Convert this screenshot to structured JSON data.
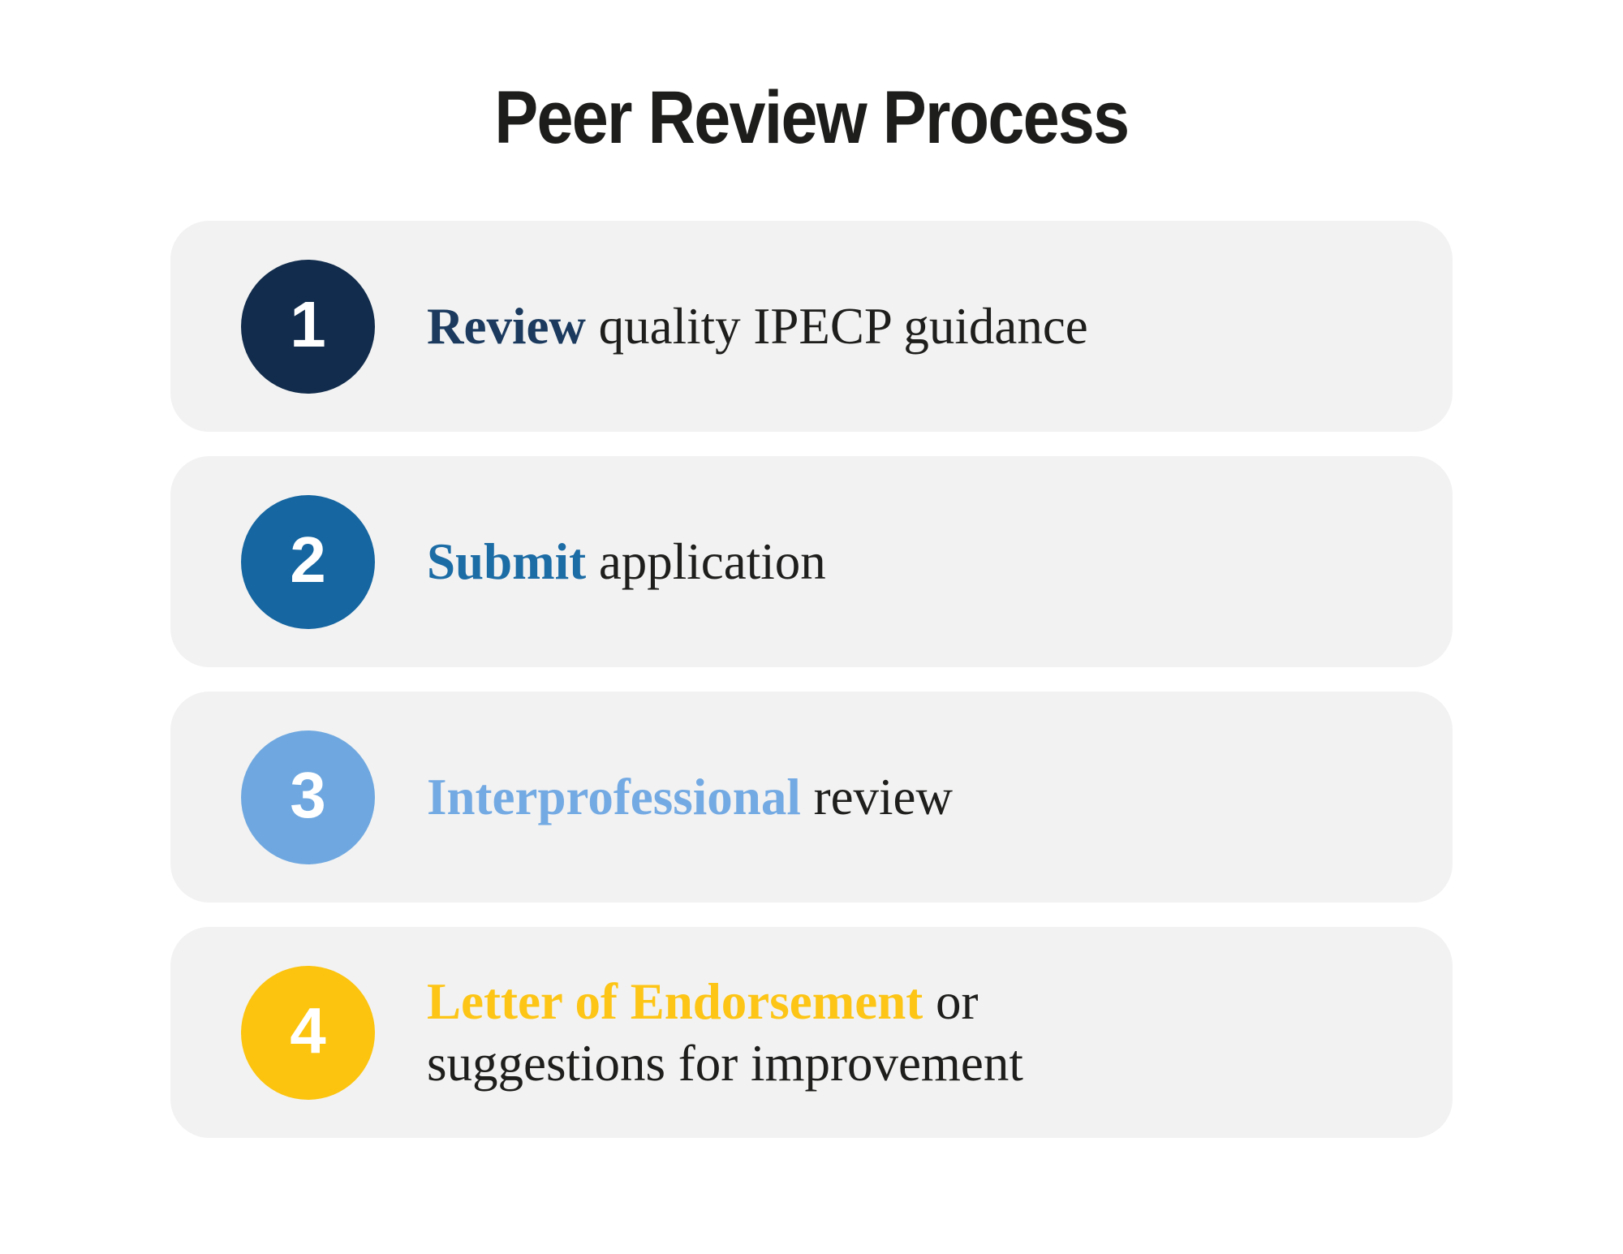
{
  "title": "Peer Review Process",
  "colors": {
    "page_bg": "#FFFFFF",
    "card_bg": "#F2F2F2",
    "body_text": "#1E1E1C",
    "number_text": "#FFFFFF"
  },
  "steps": [
    {
      "number": "1",
      "lead": "Review",
      "rest": " quality IPECP guidance",
      "circle_color": "#112C4C",
      "lead_color": "#1B3A5E"
    },
    {
      "number": "2",
      "lead": "Submit",
      "rest": " application",
      "circle_color": "#1566A1",
      "lead_color": "#1C6CA6"
    },
    {
      "number": "3",
      "lead": "Interprofessional",
      "rest": " review",
      "circle_color": "#6FA8E0",
      "lead_color": "#74AAE3"
    },
    {
      "number": "4",
      "lead": "Letter of Endorsement",
      "rest": " or suggestions for improvement",
      "circle_color": "#FCC40E",
      "lead_color": "#FDC516"
    }
  ]
}
